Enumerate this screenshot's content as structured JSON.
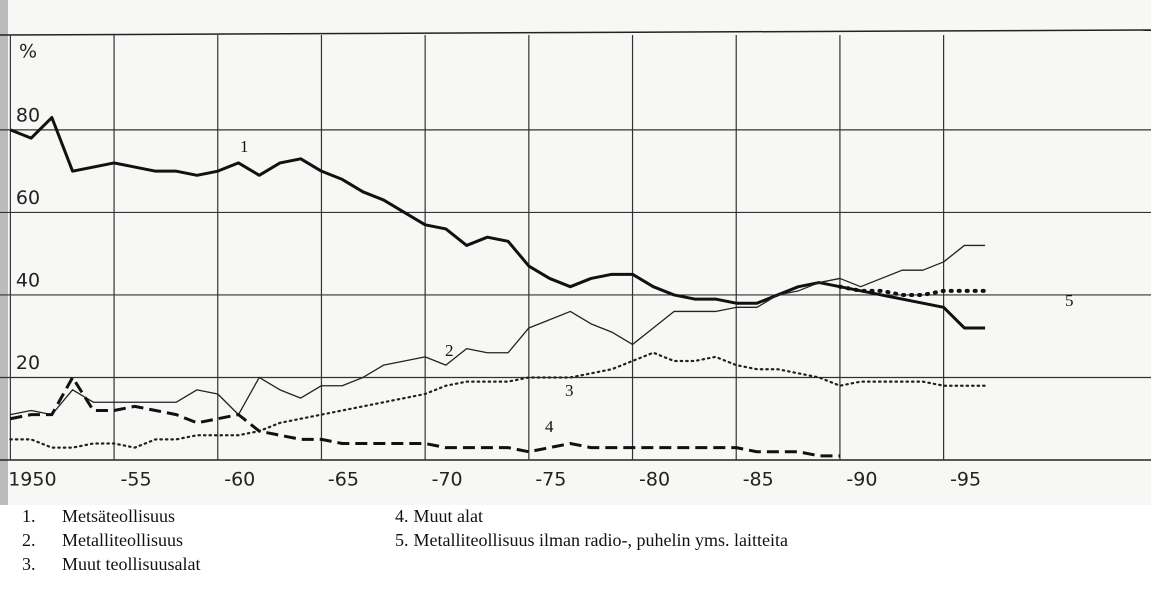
{
  "chart_data": {
    "type": "line",
    "y_label": "%",
    "xlim": [
      1949.5,
      2005
    ],
    "ylim": [
      0,
      103
    ],
    "xticks": [
      {
        "value": 1950,
        "label": "1950"
      },
      {
        "value": 1955,
        "label": "-55"
      },
      {
        "value": 1960,
        "label": "-60"
      },
      {
        "value": 1965,
        "label": "-65"
      },
      {
        "value": 1970,
        "label": "-70"
      },
      {
        "value": 1975,
        "label": "-75"
      },
      {
        "value": 1980,
        "label": "-80"
      },
      {
        "value": 1985,
        "label": "-85"
      },
      {
        "value": 1990,
        "label": "-90"
      },
      {
        "value": 1995,
        "label": "-95"
      }
    ],
    "yticks": [
      20,
      40,
      60,
      80
    ],
    "grid": true,
    "series": [
      {
        "name": "Metsäteollisuus",
        "legend_number": "1.",
        "line_label": "1",
        "color": "#111111",
        "style": "solid-thick",
        "x": [
          1950,
          1951,
          1952,
          1953,
          1954,
          1955,
          1956,
          1957,
          1958,
          1959,
          1960,
          1961,
          1962,
          1963,
          1964,
          1965,
          1966,
          1967,
          1968,
          1969,
          1970,
          1971,
          1972,
          1973,
          1974,
          1975,
          1976,
          1977,
          1978,
          1979,
          1980,
          1981,
          1982,
          1983,
          1984,
          1985,
          1986,
          1987,
          1988,
          1989,
          1990,
          1991,
          1992,
          1993,
          1994,
          1995,
          1996,
          1997
        ],
        "values": [
          80,
          78,
          83,
          70,
          71,
          72,
          71,
          70,
          70,
          69,
          70,
          72,
          69,
          72,
          73,
          70,
          68,
          65,
          63,
          60,
          57,
          56,
          52,
          54,
          53,
          47,
          44,
          42,
          44,
          45,
          45,
          42,
          40,
          39,
          39,
          38,
          38,
          40,
          42,
          43,
          42,
          41,
          40,
          39,
          38,
          37,
          32,
          32
        ]
      },
      {
        "name": "Metalliteollisuus",
        "legend_number": "2.",
        "line_label": "2",
        "color": "#222222",
        "style": "solid-thin",
        "x": [
          1950,
          1951,
          1952,
          1953,
          1954,
          1955,
          1956,
          1957,
          1958,
          1959,
          1960,
          1961,
          1962,
          1963,
          1964,
          1965,
          1966,
          1967,
          1968,
          1969,
          1970,
          1971,
          1972,
          1973,
          1974,
          1975,
          1976,
          1977,
          1978,
          1979,
          1980,
          1981,
          1982,
          1983,
          1984,
          1985,
          1986,
          1987,
          1988,
          1989,
          1990,
          1991,
          1992,
          1993,
          1994,
          1995,
          1996,
          1997
        ],
        "values": [
          11,
          12,
          11,
          17,
          14,
          14,
          14,
          14,
          14,
          17,
          16,
          11,
          20,
          17,
          15,
          18,
          18,
          20,
          23,
          24,
          25,
          23,
          27,
          26,
          26,
          32,
          34,
          36,
          33,
          31,
          28,
          32,
          36,
          36,
          36,
          37,
          37,
          40,
          41,
          43,
          44,
          42,
          44,
          46,
          46,
          48,
          52,
          52
        ]
      },
      {
        "name": "Muut teollisuusalat",
        "legend_number": "3.",
        "line_label": "3",
        "color": "#222222",
        "style": "dotted",
        "x": [
          1950,
          1951,
          1952,
          1953,
          1954,
          1955,
          1956,
          1957,
          1958,
          1959,
          1960,
          1961,
          1962,
          1963,
          1964,
          1965,
          1966,
          1967,
          1968,
          1969,
          1970,
          1971,
          1972,
          1973,
          1974,
          1975,
          1976,
          1977,
          1978,
          1979,
          1980,
          1981,
          1982,
          1983,
          1984,
          1985,
          1986,
          1987,
          1988,
          1989,
          1990,
          1991,
          1992,
          1993,
          1994,
          1995,
          1996,
          1997
        ],
        "values": [
          5,
          5,
          3,
          3,
          4,
          4,
          3,
          5,
          5,
          6,
          6,
          6,
          7,
          9,
          10,
          11,
          12,
          13,
          14,
          15,
          16,
          18,
          19,
          19,
          19,
          20,
          20,
          20,
          21,
          22,
          24,
          26,
          24,
          24,
          25,
          23,
          22,
          22,
          21,
          20,
          18,
          19,
          19,
          19,
          19,
          18,
          18,
          18
        ]
      },
      {
        "name": "Muut alat",
        "legend_number": "4.",
        "line_label": "4",
        "color": "#111111",
        "style": "dashed",
        "x": [
          1950,
          1951,
          1952,
          1953,
          1954,
          1955,
          1956,
          1957,
          1958,
          1959,
          1960,
          1961,
          1962,
          1963,
          1964,
          1965,
          1966,
          1967,
          1968,
          1969,
          1970,
          1971,
          1972,
          1973,
          1974,
          1975,
          1976,
          1977,
          1978,
          1979,
          1980,
          1981,
          1982,
          1983,
          1984,
          1985,
          1986,
          1987,
          1988,
          1989,
          1990
        ],
        "values": [
          10,
          11,
          11,
          20,
          12,
          12,
          13,
          12,
          11,
          9,
          10,
          11,
          7,
          6,
          5,
          5,
          4,
          4,
          4,
          4,
          4,
          3,
          3,
          3,
          3,
          2,
          3,
          4,
          3,
          3,
          3,
          3,
          3,
          3,
          3,
          3,
          2,
          2,
          2,
          1,
          1
        ]
      },
      {
        "name": "Metalliteollisuus ilman radio-, puhelin yms. laitteita",
        "legend_number": "5.",
        "line_label": "5",
        "color": "#111111",
        "style": "dotted-heavy",
        "x": [
          1990,
          1991,
          1992,
          1993,
          1994,
          1995,
          1996,
          1997
        ],
        "values": [
          42,
          41,
          41,
          40,
          40,
          41,
          41,
          41
        ]
      }
    ]
  }
}
